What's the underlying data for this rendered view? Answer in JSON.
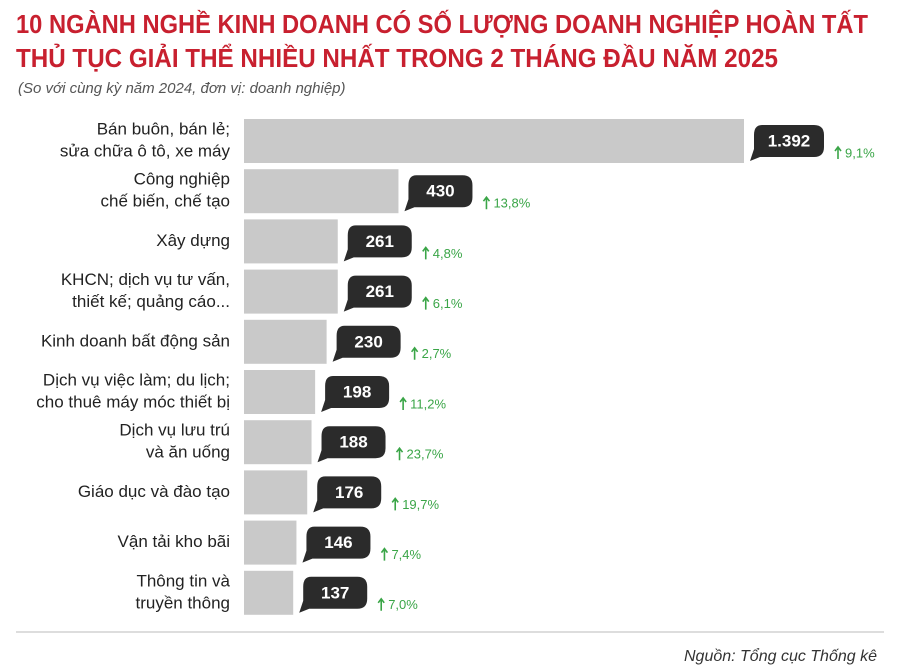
{
  "chart_data": {
    "type": "bar",
    "orientation": "horizontal",
    "title": [
      "10 NGÀNH NGHỀ KINH DOANH CÓ SỐ LƯỢNG DOANH NGHIỆP HOÀN TẤT",
      "THỦ TỤC GIẢI THỂ NHIỀU NHẤT TRONG 2 THÁNG ĐẦU NĂM 2025"
    ],
    "subtitle": "(So với cùng kỳ năm 2024, đơn vị: doanh nghiệp)",
    "categories": [
      [
        "Bán buôn, bán lẻ;",
        "sửa chữa ô tô, xe máy"
      ],
      [
        "Công nghiệp",
        "chế biến, chế tạo"
      ],
      [
        "Xây dựng"
      ],
      [
        "KHCN; dịch vụ tư vấn,",
        "thiết kế; quảng cáo..."
      ],
      [
        "Kinh doanh bất động sản"
      ],
      [
        "Dịch vụ việc làm; du lịch;",
        "cho thuê máy móc thiết bị"
      ],
      [
        "Dịch vụ lưu trú",
        "và ăn uống"
      ],
      [
        "Giáo dục và đào tạo"
      ],
      [
        "Vận tải kho bãi"
      ],
      [
        "Thông tin và",
        "truyền thông"
      ]
    ],
    "values": [
      1392,
      430,
      261,
      261,
      230,
      198,
      188,
      176,
      146,
      137
    ],
    "value_labels": [
      "1.392",
      "430",
      "261",
      "261",
      "230",
      "198",
      "188",
      "176",
      "146",
      "137"
    ],
    "changes": [
      "9,1%",
      "13,8%",
      "4,8%",
      "6,1%",
      "2,7%",
      "11,2%",
      "23,7%",
      "19,7%",
      "7,4%",
      "7,0%"
    ],
    "color": "#c9c9c9",
    "label_color": "#2b2b2b",
    "change_color": "#3aa547",
    "title_color": "#c8202f",
    "source": "Nguồn: Tổng cục Thống kê"
  }
}
